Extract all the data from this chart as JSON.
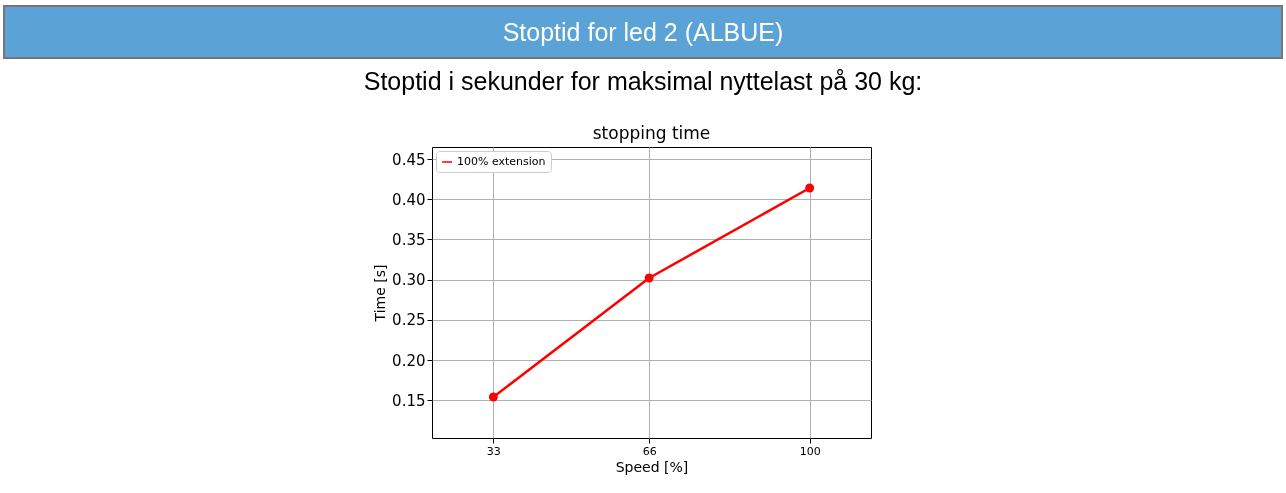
{
  "chart_data": {
    "type": "line",
    "title": "stopping time",
    "subtitle": "Stoptid i sekunder for maksimal nyttelast på 30 kg:",
    "annotations": [
      "Stoptid for led 2 (ALBUE)"
    ],
    "xlabel": "Speed [%]",
    "ylabel": "Time [s]",
    "x": [
      33,
      66,
      100
    ],
    "series": [
      {
        "name": "100% extension",
        "color": "#ff0000",
        "values": [
          0.154,
          0.302,
          0.414
        ]
      }
    ],
    "xlim": [
      20,
      113
    ],
    "xticks": [
      33,
      66,
      100
    ],
    "ylim": [
      0.103,
      0.465
    ],
    "yticks": [
      {
        "value": 0.15,
        "label": "0.15"
      },
      {
        "value": 0.2,
        "label": "0.20"
      },
      {
        "value": 0.25,
        "label": "0.25"
      },
      {
        "value": 0.3,
        "label": "0.30"
      },
      {
        "value": 0.35,
        "label": "0.35"
      },
      {
        "value": 0.4,
        "label": "0.40"
      },
      {
        "value": 0.45,
        "label": "0.45"
      }
    ],
    "grid": true,
    "legend": "top left",
    "marker": "circle",
    "line_style": "solid"
  }
}
